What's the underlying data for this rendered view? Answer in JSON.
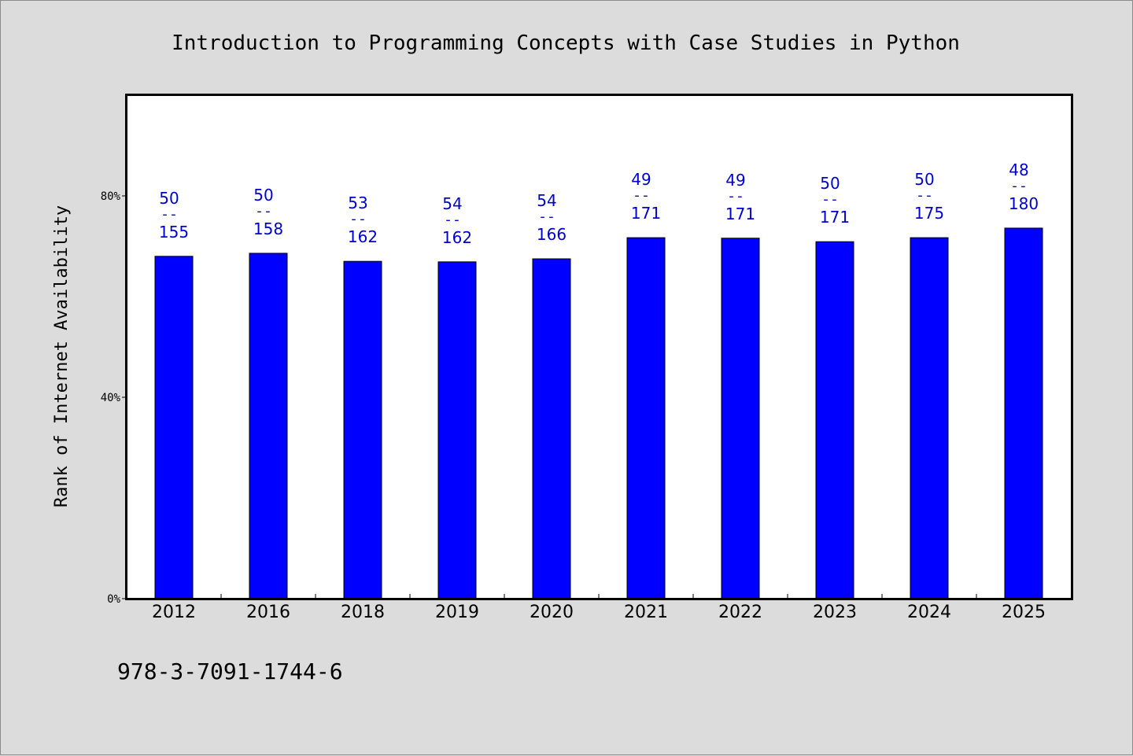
{
  "chart_data": {
    "type": "bar",
    "title": "Introduction to Programming Concepts with Case Studies in Python",
    "xlabel": "",
    "ylabel": "Rank of Internet Availability",
    "categories": [
      "2012",
      "2016",
      "2018",
      "2019",
      "2020",
      "2021",
      "2022",
      "2023",
      "2024",
      "2025"
    ],
    "series": [
      {
        "values": [
          0.68,
          0.686,
          0.67,
          0.669,
          0.675,
          0.717,
          0.716,
          0.709,
          0.717,
          0.736
        ],
        "labels": [
          {
            "top": "50",
            "mid": "--",
            "bottom": "155"
          },
          {
            "top": "50",
            "mid": "--",
            "bottom": "158"
          },
          {
            "top": "53",
            "mid": "--",
            "bottom": "162"
          },
          {
            "top": "54",
            "mid": "--",
            "bottom": "162"
          },
          {
            "top": "54",
            "mid": "--",
            "bottom": "166"
          },
          {
            "top": "49",
            "mid": "--",
            "bottom": "171"
          },
          {
            "top": "49",
            "mid": "--",
            "bottom": "171"
          },
          {
            "top": "50",
            "mid": "--",
            "bottom": "171"
          },
          {
            "top": "50",
            "mid": "--",
            "bottom": "175"
          },
          {
            "top": "48",
            "mid": "--",
            "bottom": "180"
          }
        ]
      }
    ],
    "ylim": [
      0,
      1.0
    ],
    "yticks": [
      0,
      0.4,
      0.8
    ],
    "ytick_labels": [
      "0%",
      "40%",
      "80%"
    ],
    "grid": false,
    "legend": "none",
    "bar_color": "#0000ff",
    "label_color": "#0000cc"
  },
  "footer": {
    "isbn": "978-3-7091-1744-6"
  }
}
